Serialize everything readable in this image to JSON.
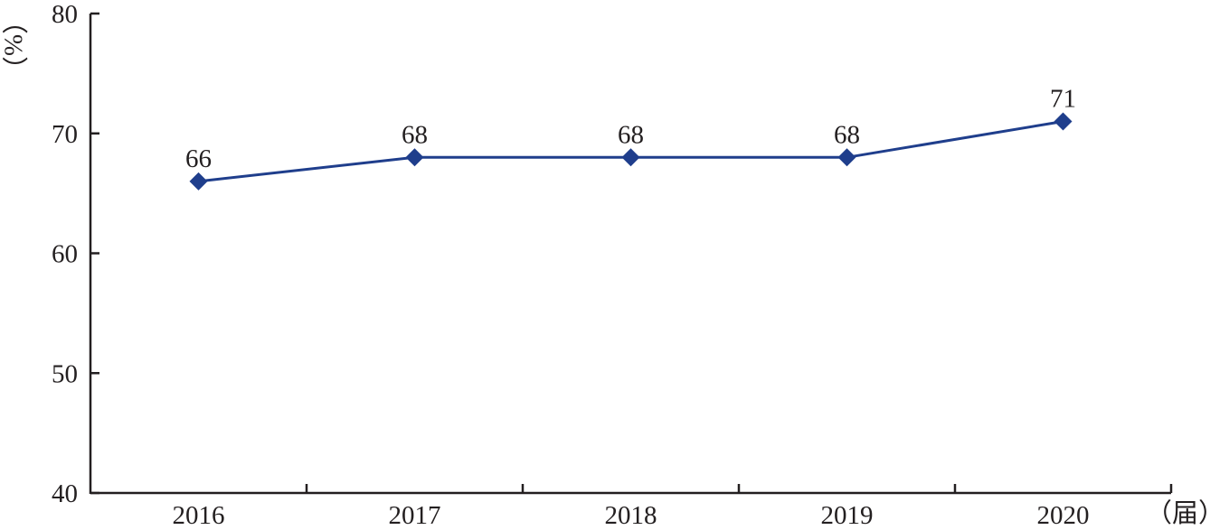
{
  "chart_data": {
    "type": "line",
    "title": "",
    "xlabel": "",
    "ylabel": "",
    "x_unit": "（届）",
    "y_unit": "（%）",
    "categories": [
      "2016",
      "2017",
      "2018",
      "2019",
      "2020"
    ],
    "series": [
      {
        "values": [
          66,
          68,
          68,
          68,
          71
        ],
        "data_labels": [
          "66",
          "68",
          "68",
          "68",
          "71"
        ],
        "color": "#1f3e8c",
        "marker": "diamond"
      }
    ],
    "ylim": [
      40,
      80
    ],
    "yticks": [
      "40",
      "50",
      "60",
      "70",
      "80"
    ],
    "grid": false,
    "legend": "none"
  }
}
